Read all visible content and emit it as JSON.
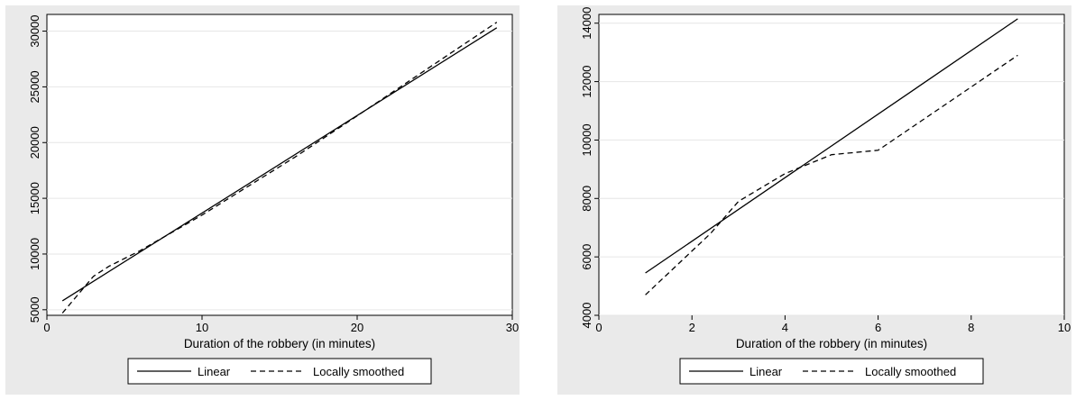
{
  "chart_data": [
    {
      "type": "line",
      "title": "",
      "xlabel": "Duration of the robbery (in minutes)",
      "ylabel": "",
      "xlim": [
        0,
        30
      ],
      "ylim": [
        4500,
        31500
      ],
      "xticks": [
        0,
        10,
        20,
        30
      ],
      "yticks": [
        5000,
        10000,
        15000,
        20000,
        25000,
        30000
      ],
      "x_tick_labels": [
        "0",
        "10",
        "20",
        "30"
      ],
      "y_tick_labels": [
        "5000",
        "10000",
        "15000",
        "20000",
        "25000",
        "30000"
      ],
      "grid": "horizontal",
      "legend": {
        "position": "bottom"
      },
      "series": [
        {
          "name": "Linear",
          "style": "solid",
          "points": [
            [
              1,
              5800
            ],
            [
              29,
              30300
            ]
          ]
        },
        {
          "name": "Locally smoothed",
          "style": "dashed",
          "points": [
            [
              1,
              4700
            ],
            [
              3,
              8000
            ],
            [
              4,
              8900
            ],
            [
              6,
              10300
            ],
            [
              10,
              13500
            ],
            [
              16,
              18700
            ],
            [
              20,
              22400
            ],
            [
              29,
              30800
            ]
          ]
        }
      ],
      "legend_labels": {
        "linear": "Linear",
        "smoothed": "Locally smoothed"
      }
    },
    {
      "type": "line",
      "title": "",
      "xlabel": "Duration of the robbery (in minutes)",
      "ylabel": "",
      "xlim": [
        0,
        10
      ],
      "ylim": [
        4000,
        14300
      ],
      "xticks": [
        0,
        2,
        4,
        6,
        8,
        10
      ],
      "yticks": [
        4000,
        6000,
        8000,
        10000,
        12000,
        14000
      ],
      "x_tick_labels": [
        "0",
        "2",
        "4",
        "6",
        "8",
        "10"
      ],
      "y_tick_labels": [
        "4000",
        "6000",
        "8000",
        "10000",
        "12000",
        "14000"
      ],
      "grid": "horizontal",
      "legend": {
        "position": "bottom"
      },
      "series": [
        {
          "name": "Linear",
          "style": "solid",
          "points": [
            [
              1,
              5450
            ],
            [
              9,
              14150
            ]
          ]
        },
        {
          "name": "Locally smoothed",
          "style": "dashed",
          "points": [
            [
              1,
              4700
            ],
            [
              2.4,
              6800
            ],
            [
              3,
              7900
            ],
            [
              4,
              8850
            ],
            [
              5,
              9500
            ],
            [
              6,
              9650
            ],
            [
              9,
              12900
            ]
          ]
        }
      ],
      "legend_labels": {
        "linear": "Linear",
        "smoothed": "Locally smoothed"
      }
    }
  ]
}
